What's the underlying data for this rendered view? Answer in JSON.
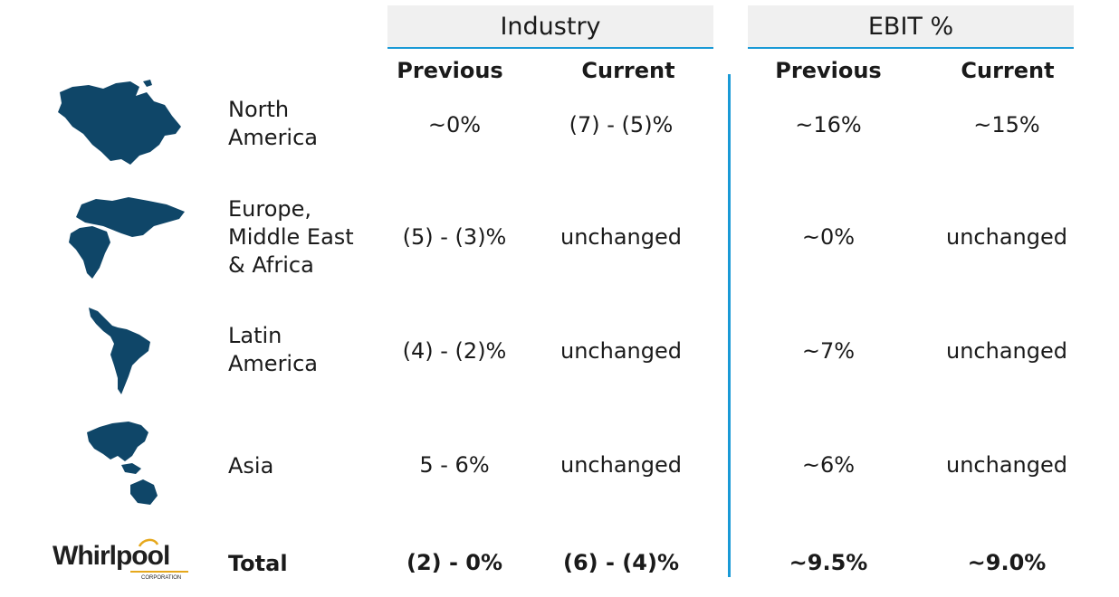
{
  "headers": {
    "industry": "Industry",
    "ebit": "EBIT %",
    "previous": "Previous",
    "current": "Current"
  },
  "colors": {
    "accent": "#1a9ad6",
    "map": "#0f4668",
    "header_bg": "#f0f0f0"
  },
  "rows": [
    {
      "region_lines": [
        "North",
        "America"
      ],
      "icon": "north-america-map-icon",
      "industry_prev": "~0%",
      "industry_curr": "(7) - (5)%",
      "ebit_prev": "~16%",
      "ebit_curr": "~15%"
    },
    {
      "region_lines": [
        "Europe,",
        "Middle East",
        "& Africa"
      ],
      "icon": "emea-map-icon",
      "industry_prev": "(5) - (3)%",
      "industry_curr": "unchanged",
      "ebit_prev": "~0%",
      "ebit_curr": "unchanged"
    },
    {
      "region_lines": [
        "Latin",
        "America"
      ],
      "icon": "latin-america-map-icon",
      "industry_prev": "(4) - (2)%",
      "industry_curr": "unchanged",
      "ebit_prev": "~7%",
      "ebit_curr": "unchanged"
    },
    {
      "region_lines": [
        "Asia"
      ],
      "icon": "asia-map-icon",
      "industry_prev": "5 - 6%",
      "industry_curr": "unchanged",
      "ebit_prev": "~6%",
      "ebit_curr": "unchanged"
    }
  ],
  "total": {
    "label": "Total",
    "industry_prev": "(2) - 0%",
    "industry_curr": "(6) - (4)%",
    "ebit_prev": "~9.5%",
    "ebit_curr": "~9.0%"
  },
  "logo": {
    "name": "Whirlpool",
    "sub": "CORPORATION",
    "icon": "whirlpool-logo-icon"
  }
}
